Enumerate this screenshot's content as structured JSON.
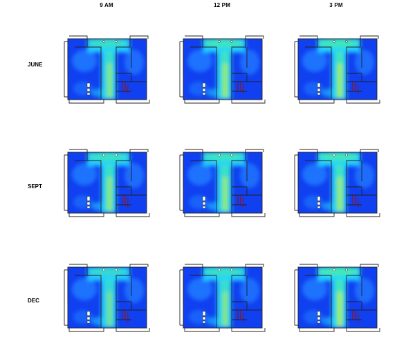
{
  "columns": [
    "9 AM",
    "12 PM",
    "3 PM"
  ],
  "rows": [
    {
      "label": "JUNE",
      "panels": [
        {
          "intensity": 0.55
        },
        {
          "intensity": 0.65
        },
        {
          "intensity": 0.7
        }
      ]
    },
    {
      "label": "SEPT",
      "panels": [
        {
          "intensity": 0.6
        },
        {
          "intensity": 0.62
        },
        {
          "intensity": 0.68
        }
      ]
    },
    {
      "label": "DEC",
      "panels": [
        {
          "intensity": 0.45
        },
        {
          "intensity": 0.55
        },
        {
          "intensity": 0.75
        }
      ]
    }
  ],
  "colors": {
    "deep_blue": "#1040f0",
    "blue": "#1e78ff",
    "cyan": "#22d4ff",
    "green": "#4cf2a0",
    "yellow": "#d8f030",
    "wall": "#222222",
    "dark_red": "#8a1830"
  }
}
